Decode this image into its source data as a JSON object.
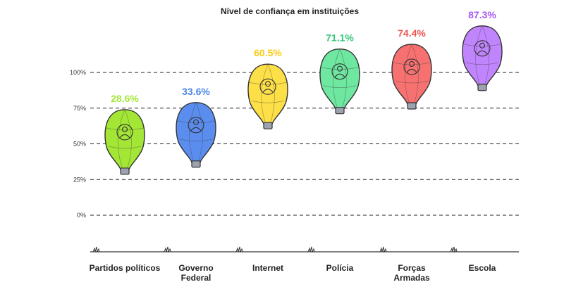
{
  "chart_data": {
    "type": "bar",
    "title": "Nível de confiança em instituições",
    "categories": [
      {
        "label": [
          "Partidos políticos"
        ],
        "value": 28.6,
        "value_label": "28.6%",
        "color": "#a3e635",
        "text_color": "#a3e635",
        "icon": "podium-speaker-icon"
      },
      {
        "label": [
          "Governo",
          "Federal"
        ],
        "value": 33.6,
        "value_label": "33.6%",
        "color": "#5b8def",
        "text_color": "#4a86e8",
        "icon": "person-bust-icon"
      },
      {
        "label": [
          "Internet"
        ],
        "value": 60.5,
        "value_label": "60.5%",
        "color": "#fde047",
        "text_color": "#facc15",
        "icon": "www-globe-icon"
      },
      {
        "label": [
          "Polícia"
        ],
        "value": 71.1,
        "value_label": "71.1%",
        "color": "#6ee7a0",
        "text_color": "#34c77b",
        "icon": "police-officer-icon"
      },
      {
        "label": [
          "Forças",
          "Armadas"
        ],
        "value": 74.4,
        "value_label": "74.4%",
        "color": "#f87171",
        "text_color": "#ef5350",
        "icon": "soldier-sandbags-icon"
      },
      {
        "label": [
          "Escola"
        ],
        "value": 87.3,
        "value_label": "87.3%",
        "color": "#c084fc",
        "text_color": "#a855f7",
        "icon": "graduation-cap-pencil-icon"
      }
    ],
    "yticks": [
      "0%",
      "25%",
      "50%",
      "75%",
      "100%"
    ],
    "ylim": [
      0,
      100
    ],
    "grid": true
  }
}
